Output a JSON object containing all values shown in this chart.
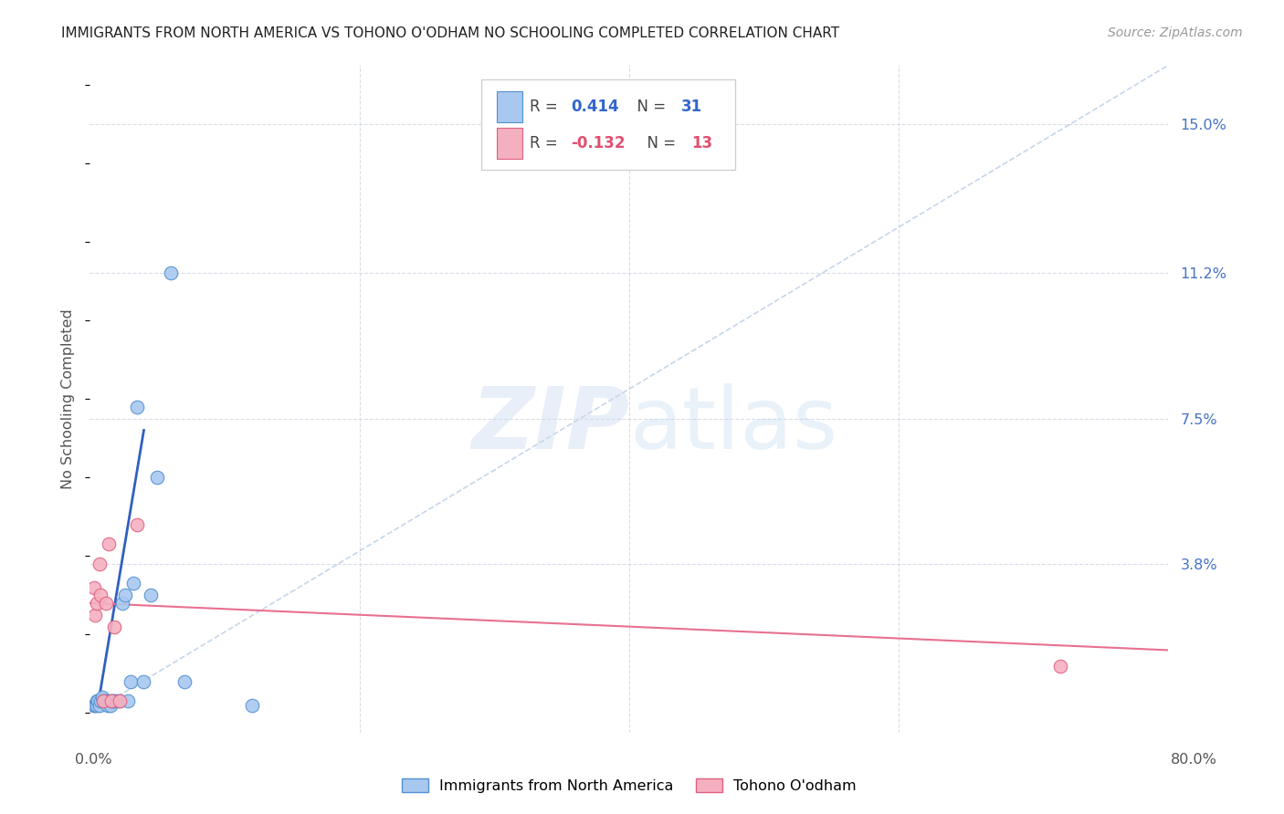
{
  "title": "IMMIGRANTS FROM NORTH AMERICA VS TOHONO O'ODHAM NO SCHOOLING COMPLETED CORRELATION CHART",
  "source": "Source: ZipAtlas.com",
  "ylabel": "No Schooling Completed",
  "ytick_labels": [
    "3.8%",
    "7.5%",
    "11.2%",
    "15.0%"
  ],
  "ytick_values": [
    0.038,
    0.075,
    0.112,
    0.15
  ],
  "xlim": [
    0.0,
    0.8
  ],
  "ylim": [
    -0.005,
    0.165
  ],
  "blue_color": "#a8c8f0",
  "pink_color": "#f5b0c0",
  "blue_edge_color": "#5090d0",
  "pink_edge_color": "#e06080",
  "blue_line_color": "#3060c0",
  "pink_line_color": "#e87090",
  "diag_line_color": "#b8cce4",
  "grid_color": "#d8dde8",
  "blue_scatter_x": [
    0.003,
    0.004,
    0.005,
    0.005,
    0.006,
    0.007,
    0.008,
    0.009,
    0.01,
    0.011,
    0.012,
    0.013,
    0.014,
    0.015,
    0.016,
    0.017,
    0.018,
    0.02,
    0.022,
    0.024,
    0.026,
    0.028,
    0.03,
    0.032,
    0.035,
    0.04,
    0.045,
    0.05,
    0.06,
    0.07,
    0.12
  ],
  "blue_scatter_y": [
    0.002,
    0.002,
    0.003,
    0.002,
    0.003,
    0.002,
    0.003,
    0.004,
    0.003,
    0.003,
    0.003,
    0.002,
    0.003,
    0.002,
    0.003,
    0.003,
    0.003,
    0.003,
    0.003,
    0.028,
    0.03,
    0.003,
    0.008,
    0.033,
    0.078,
    0.008,
    0.03,
    0.06,
    0.112,
    0.008,
    0.002
  ],
  "pink_scatter_x": [
    0.003,
    0.004,
    0.005,
    0.007,
    0.008,
    0.01,
    0.012,
    0.014,
    0.016,
    0.018,
    0.022,
    0.035,
    0.72
  ],
  "pink_scatter_y": [
    0.032,
    0.025,
    0.028,
    0.038,
    0.03,
    0.003,
    0.028,
    0.043,
    0.003,
    0.022,
    0.003,
    0.048,
    0.012
  ],
  "blue_line_x": [
    0.006,
    0.04
  ],
  "blue_line_y": [
    0.002,
    0.072
  ],
  "pink_line_x": [
    0.0,
    0.8
  ],
  "pink_line_y": [
    0.028,
    0.016
  ],
  "diag_line_x": [
    0.0,
    0.165
  ],
  "diag_line_y": [
    0.0,
    0.165
  ],
  "leg_r1_label": "R = ",
  "leg_r1_val": "0.414",
  "leg_r1_n_label": "N = ",
  "leg_r1_n_val": "31",
  "leg_r2_label": "R = ",
  "leg_r2_val": "-0.132",
  "leg_r2_n_label": "N = ",
  "leg_r2_n_val": "13",
  "bottom_legend_blue": "Immigrants from North America",
  "bottom_legend_pink": "Tohono O'odham"
}
